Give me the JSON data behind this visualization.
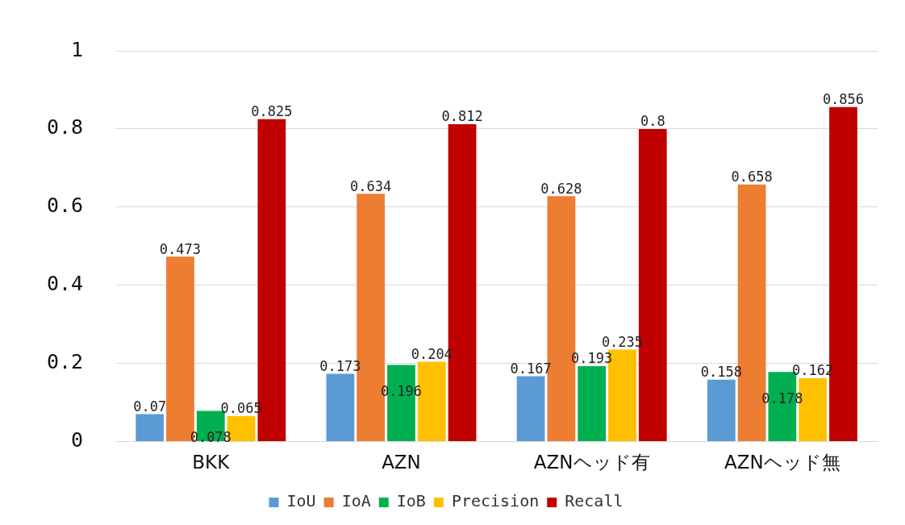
{
  "chart_data": {
    "type": "bar",
    "categories": [
      "BKK",
      "AZN",
      "AZNヘッド有",
      "AZNヘッド無"
    ],
    "series": [
      {
        "name": "IoU",
        "color": "#5b9bd5",
        "values": [
          0.07,
          0.173,
          0.167,
          0.158
        ]
      },
      {
        "name": "IoA",
        "color": "#ed7d31",
        "values": [
          0.473,
          0.634,
          0.628,
          0.658
        ]
      },
      {
        "name": "IoB",
        "color": "#00b050",
        "values": [
          0.078,
          0.196,
          0.193,
          0.178
        ]
      },
      {
        "name": "Precision",
        "color": "#ffc000",
        "values": [
          0.065,
          0.204,
          0.235,
          0.162
        ]
      },
      {
        "name": "Recall",
        "color": "#c00000",
        "values": [
          0.825,
          0.812,
          0.8,
          0.856
        ]
      }
    ],
    "ylim": [
      0,
      1
    ],
    "yticks": [
      0,
      0.2,
      0.4,
      0.6,
      0.8,
      1
    ],
    "grid": "y",
    "legend": "bottom",
    "data_labels": true
  }
}
